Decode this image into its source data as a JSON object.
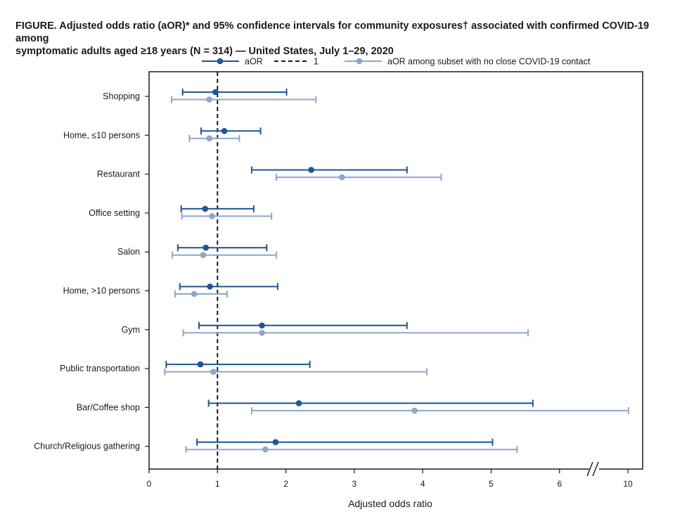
{
  "title": {
    "line1": "FIGURE. Adjusted odds ratio (aOR)* and 95% confidence intervals for community exposures† associated with confirmed COVID-19 among",
    "line2": "symptomatic adults aged ≥18 years (N = 314) — United States, July 1–29, 2020"
  },
  "chart_data": {
    "type": "forest",
    "xlabel": "Adjusted odds ratio",
    "x_ticks": [
      "0",
      "1",
      "2",
      "3",
      "4",
      "5",
      "6",
      "10"
    ],
    "axis_break": "between 6 and 10",
    "reference_line": 1,
    "legend": {
      "placement": "top",
      "items": [
        {
          "key": "aor",
          "label": "aOR",
          "color": "#1f5591"
        },
        {
          "key": "ref",
          "label": "1",
          "color": "#1a1a1a",
          "style": "dashed"
        },
        {
          "key": "subset",
          "label": "aOR among subset with no close COVID-19 contact",
          "color": "#8fa5cd"
        }
      ]
    },
    "categories": [
      "Shopping",
      "Home, ≤10 persons",
      "Restaurant",
      "Office setting",
      "Salon",
      "Home, >10 persons",
      "Gym",
      "Public transportation",
      "Bar/Coffee shop",
      "Church/Religious gathering"
    ],
    "series": [
      {
        "key": "aor",
        "color": "#1f5591",
        "points": [
          {
            "est": 0.97,
            "low": 0.49,
            "high": 2.01
          },
          {
            "est": 1.1,
            "low": 0.76,
            "high": 1.63
          },
          {
            "est": 2.37,
            "low": 1.5,
            "high": 3.77
          },
          {
            "est": 0.82,
            "low": 0.47,
            "high": 1.53
          },
          {
            "est": 0.83,
            "low": 0.42,
            "high": 1.72
          },
          {
            "est": 0.89,
            "low": 0.45,
            "high": 1.88
          },
          {
            "est": 1.65,
            "low": 0.73,
            "high": 3.77
          },
          {
            "est": 0.75,
            "low": 0.25,
            "high": 2.35
          },
          {
            "est": 2.19,
            "low": 0.87,
            "high": 5.61
          },
          {
            "est": 1.85,
            "low": 0.7,
            "high": 5.02
          }
        ]
      },
      {
        "key": "subset",
        "color": "#8fa5cd",
        "points": [
          {
            "est": 0.88,
            "low": 0.33,
            "high": 2.44
          },
          {
            "est": 0.88,
            "low": 0.59,
            "high": 1.32
          },
          {
            "est": 2.82,
            "low": 1.86,
            "high": 4.27
          },
          {
            "est": 0.92,
            "low": 0.48,
            "high": 1.79
          },
          {
            "est": 0.79,
            "low": 0.34,
            "high": 1.86
          },
          {
            "est": 0.66,
            "low": 0.38,
            "high": 1.14
          },
          {
            "est": 1.65,
            "low": 0.5,
            "high": 5.54
          },
          {
            "est": 0.94,
            "low": 0.23,
            "high": 4.06
          },
          {
            "est": 3.88,
            "low": 1.5,
            "high": 10.06
          },
          {
            "est": 1.7,
            "low": 0.54,
            "high": 5.38
          }
        ]
      }
    ]
  }
}
